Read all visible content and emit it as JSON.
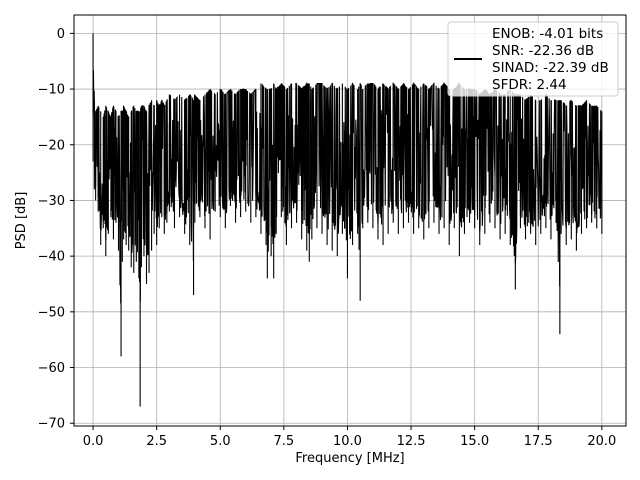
{
  "chart_data": {
    "type": "line",
    "xlabel": "Frequency [MHz]",
    "ylabel": "PSD [dB]",
    "xlim": [
      -0.75,
      20.95
    ],
    "ylim": [
      -70.5,
      3.3
    ],
    "xticks": [
      0.0,
      2.5,
      5.0,
      7.5,
      10.0,
      12.5,
      15.0,
      17.5,
      20.0
    ],
    "xtick_labels": [
      "0.0",
      "2.5",
      "5.0",
      "7.5",
      "10.0",
      "12.5",
      "15.0",
      "17.5",
      "20.0"
    ],
    "yticks": [
      0,
      -10,
      -20,
      -30,
      -40,
      -50,
      -60,
      -70
    ],
    "ytick_labels": [
      "0",
      "−10",
      "−20",
      "−30",
      "−40",
      "−50",
      "−60",
      "−70"
    ],
    "grid": true,
    "legend_position": "top-right",
    "line_color": "#000000",
    "series": [
      {
        "name": "ENOB: -4.01 bits\nSNR: -22.36 dB\nSINAD: -22.39 dB\nSFDR: 2.44",
        "legend_lines": [
          "ENOB: -4.01 bits",
          "SNR: -22.36 dB",
          "SINAD: -22.39 dB",
          "SFDR: 2.44"
        ],
        "x": [
          0.0,
          0.05,
          0.1,
          0.2,
          0.3,
          0.4,
          0.5,
          0.6,
          0.7,
          0.8,
          0.9,
          1.0,
          1.1,
          1.15,
          1.2,
          1.3,
          1.4,
          1.5,
          1.6,
          1.7,
          1.8,
          1.85,
          1.9,
          2.0,
          2.1,
          2.2,
          2.3,
          2.4,
          2.5,
          2.6,
          2.7,
          2.8,
          2.9,
          3.0,
          3.2,
          3.4,
          3.6,
          3.8,
          3.95,
          4.0,
          4.2,
          4.4,
          4.6,
          4.8,
          5.0,
          5.2,
          5.4,
          5.6,
          5.8,
          6.0,
          6.2,
          6.4,
          6.6,
          6.8,
          6.85,
          7.0,
          7.1,
          7.2,
          7.4,
          7.6,
          7.8,
          8.0,
          8.2,
          8.4,
          8.5,
          8.6,
          8.8,
          9.0,
          9.2,
          9.4,
          9.6,
          9.8,
          10.0,
          10.2,
          10.4,
          10.5,
          10.6,
          10.8,
          11.0,
          11.2,
          11.4,
          11.6,
          11.8,
          12.0,
          12.2,
          12.4,
          12.6,
          12.8,
          13.0,
          13.2,
          13.4,
          13.6,
          13.8,
          14.0,
          14.2,
          14.4,
          14.6,
          14.8,
          15.0,
          15.2,
          15.4,
          15.6,
          15.8,
          16.0,
          16.2,
          16.4,
          16.6,
          16.8,
          17.0,
          17.2,
          17.4,
          17.6,
          17.8,
          18.0,
          18.2,
          18.35,
          18.4,
          18.6,
          18.8,
          19.0,
          19.2,
          19.4,
          19.6,
          19.8,
          20.0
        ],
        "y_upper": [
          0,
          -12,
          -14,
          -13,
          -14,
          -15,
          -13,
          -14,
          -15,
          -13,
          -14,
          -15,
          -14,
          -14,
          -13,
          -14,
          -15,
          -14,
          -13,
          -14,
          -14,
          -14,
          -13,
          -13,
          -14,
          -13,
          -12,
          -13,
          -12,
          -13,
          -12,
          -13,
          -12,
          -11,
          -12,
          -11,
          -12,
          -11,
          -12,
          -11,
          -12,
          -11,
          -10,
          -11,
          -10,
          -11,
          -10,
          -11,
          -10,
          -10,
          -11,
          -10,
          -9,
          -10,
          -10,
          -10,
          -9,
          -10,
          -9,
          -10,
          -9,
          -9,
          -10,
          -9,
          -9,
          -10,
          -9,
          -9,
          -10,
          -9,
          -10,
          -9,
          -10,
          -9,
          -10,
          -9,
          -10,
          -9,
          -9,
          -10,
          -9,
          -10,
          -9,
          -10,
          -9,
          -10,
          -9,
          -10,
          -9,
          -10,
          -9,
          -10,
          -9,
          -10,
          -10,
          -9,
          -10,
          -10,
          -10,
          -11,
          -10,
          -11,
          -10,
          -11,
          -11,
          -10,
          -11,
          -11,
          -12,
          -11,
          -12,
          -12,
          -11,
          -12,
          -12,
          -12,
          -12,
          -13,
          -12,
          -13,
          -13,
          -12,
          -13,
          -13,
          -14
        ],
        "y_lower": [
          -23,
          -28,
          -30,
          -32,
          -38,
          -35,
          -40,
          -36,
          -33,
          -37,
          -34,
          -39,
          -58,
          -41,
          -37,
          -38,
          -39,
          -42,
          -43,
          -41,
          -44,
          -67,
          -42,
          -40,
          -45,
          -43,
          -39,
          -36,
          -38,
          -35,
          -33,
          -36,
          -34,
          -32,
          -35,
          -33,
          -36,
          -38,
          -47,
          -34,
          -33,
          -35,
          -37,
          -32,
          -33,
          -35,
          -31,
          -34,
          -33,
          -32,
          -34,
          -33,
          -36,
          -38,
          -44,
          -40,
          -44,
          -36,
          -33,
          -38,
          -35,
          -34,
          -37,
          -39,
          -41,
          -37,
          -35,
          -36,
          -38,
          -39,
          -40,
          -36,
          -44,
          -38,
          -36,
          -48,
          -35,
          -34,
          -35,
          -37,
          -38,
          -36,
          -34,
          -36,
          -35,
          -34,
          -36,
          -35,
          -37,
          -35,
          -34,
          -36,
          -35,
          -38,
          -35,
          -40,
          -36,
          -34,
          -35,
          -38,
          -36,
          -34,
          -35,
          -37,
          -36,
          -38,
          -46,
          -35,
          -37,
          -36,
          -38,
          -36,
          -35,
          -37,
          -34,
          -54,
          -36,
          -38,
          -37,
          -39,
          -36,
          -35,
          -34,
          -35,
          -36
        ]
      }
    ]
  }
}
